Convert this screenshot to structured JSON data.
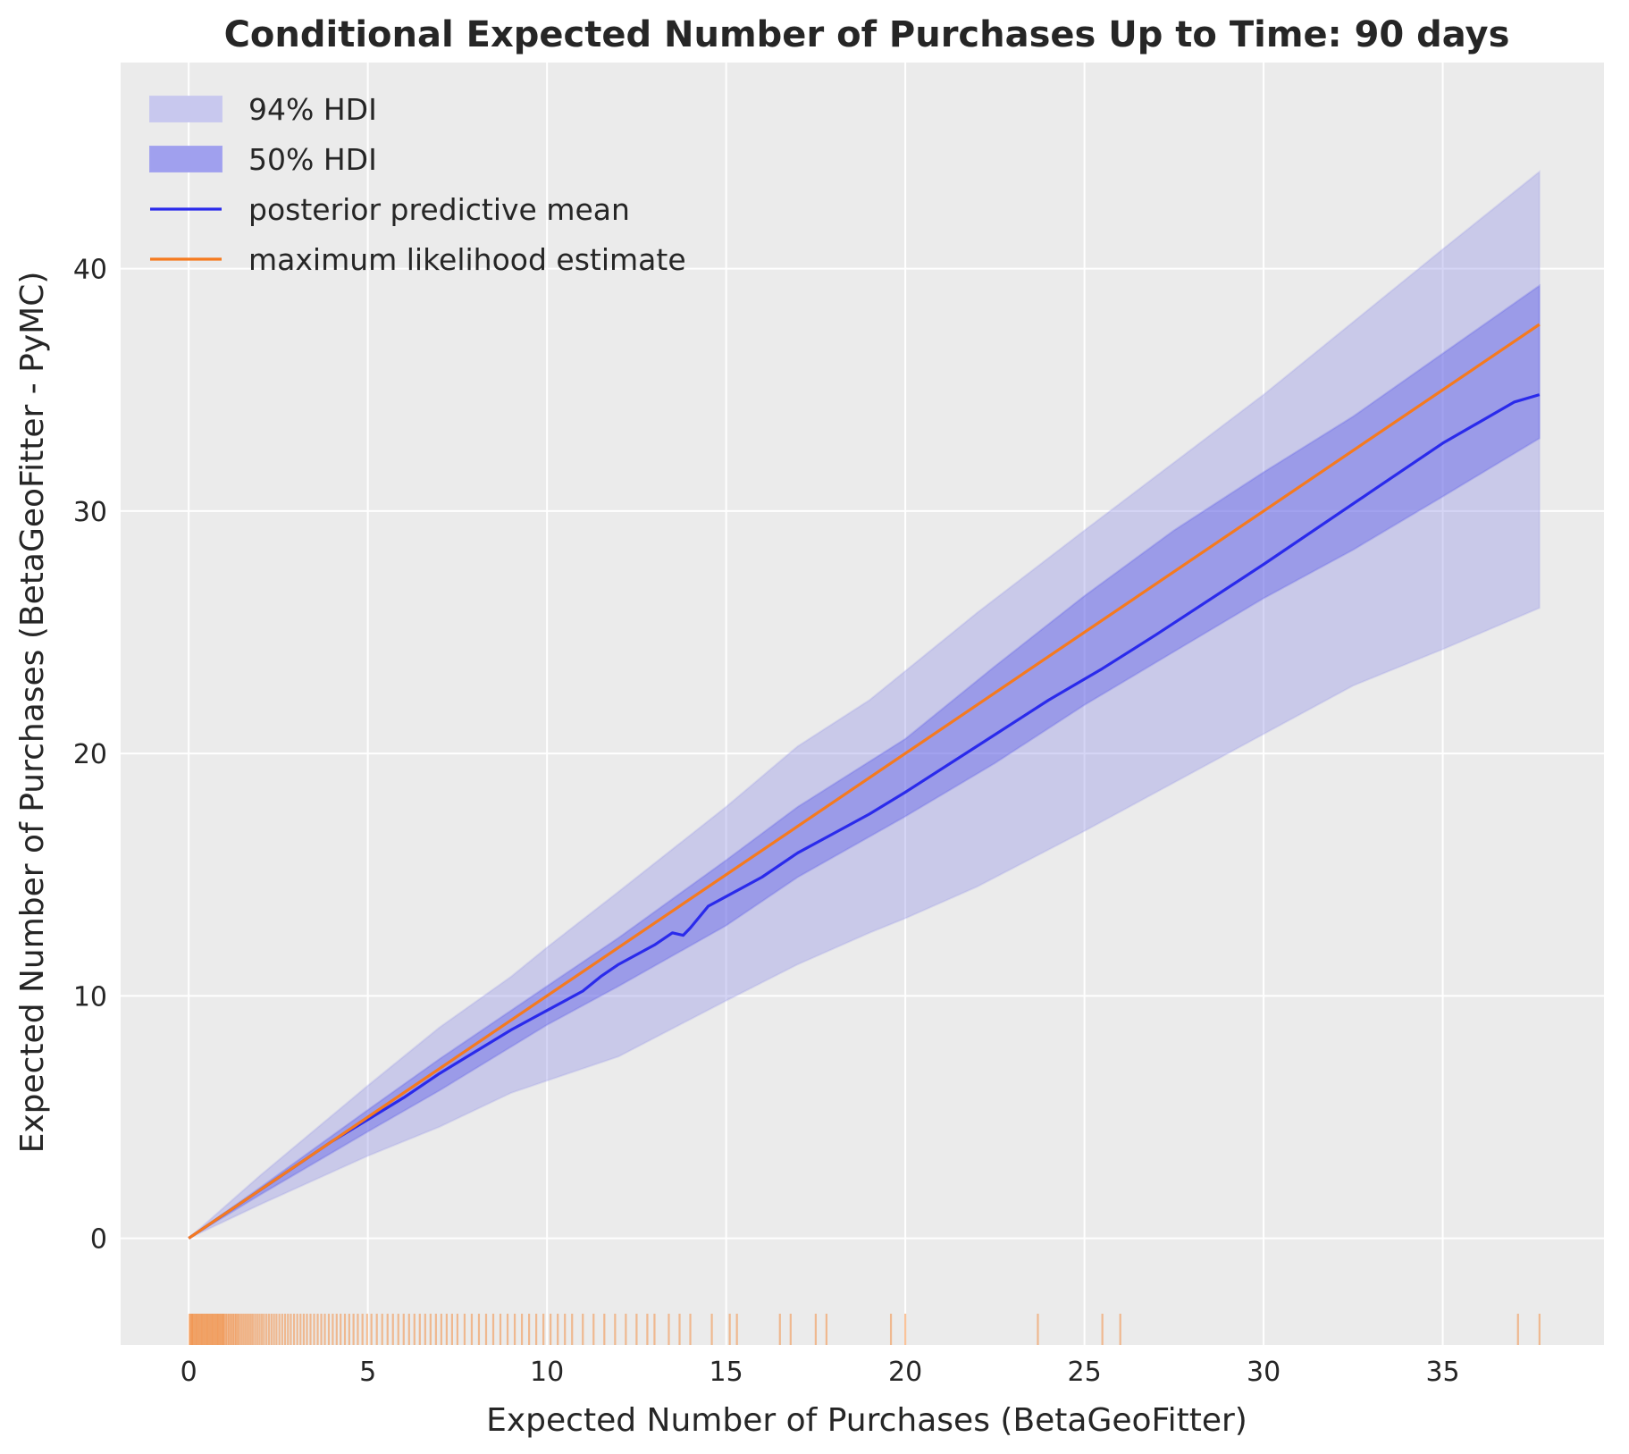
{
  "chart_data": {
    "type": "line",
    "title": "Conditional Expected Number of Purchases Up to Time: 90 days",
    "xlabel": "Expected Number of Purchases (BetaGeoFitter)",
    "ylabel": "Expected Number of Purchases (BetaGeoFitter - PyMC)",
    "xlim": [
      -1.9,
      39.5
    ],
    "ylim": [
      -4.4,
      48.5
    ],
    "x_ticks": [
      0,
      5,
      10,
      15,
      20,
      25,
      30,
      35
    ],
    "y_ticks": [
      0,
      10,
      20,
      30,
      40
    ],
    "grid": true,
    "legend_position": "top-left",
    "colors": {
      "background": "#ebebeb",
      "grid": "#ffffff",
      "hdi_94": "#9c9ce6",
      "hdi_50": "#5c5ce6",
      "posterior_mean": "#2a2aeb",
      "mle": "#f57a1f",
      "rug": "#f57a1f"
    },
    "legend": [
      {
        "label": "94% HDI",
        "kind": "band",
        "color": "#c8c8ee"
      },
      {
        "label": "50% HDI",
        "kind": "band",
        "color": "#a0a0ee"
      },
      {
        "label": "posterior predictive mean",
        "kind": "line",
        "color": "#2a2aeb"
      },
      {
        "label": "maximum likelihood estimate",
        "kind": "line",
        "color": "#f57a1f"
      }
    ],
    "series": [
      {
        "name": "posterior predictive mean",
        "x": [
          0,
          1,
          2,
          3,
          4,
          5,
          6,
          7,
          8,
          9,
          9.5,
          10,
          11,
          11.5,
          12,
          13,
          13.5,
          13.8,
          14,
          14.5,
          15,
          16,
          17,
          18,
          19,
          20,
          22,
          24,
          25.5,
          27,
          30,
          33,
          35,
          37,
          37.7
        ],
        "y": [
          0,
          1.0,
          2.0,
          3.0,
          4.0,
          4.9,
          5.8,
          6.8,
          7.7,
          8.6,
          9.0,
          9.4,
          10.2,
          10.8,
          11.3,
          12.1,
          12.6,
          12.5,
          12.8,
          13.7,
          14.1,
          14.9,
          15.9,
          16.7,
          17.5,
          18.4,
          20.3,
          22.2,
          23.5,
          24.9,
          27.8,
          30.8,
          32.8,
          34.5,
          34.8
        ]
      },
      {
        "name": "maximum likelihood estimate",
        "x": [
          0,
          37.7
        ],
        "y": [
          0,
          37.7
        ]
      }
    ],
    "bands": [
      {
        "name": "94% HDI",
        "x": [
          0,
          2,
          5,
          7,
          9,
          10,
          12,
          15,
          17,
          19,
          20,
          22,
          25,
          30,
          32.5,
          35,
          37.7
        ],
        "lower": [
          0,
          1.4,
          3.4,
          4.6,
          6.0,
          6.5,
          7.5,
          9.8,
          11.3,
          12.6,
          13.2,
          14.5,
          16.8,
          20.8,
          22.8,
          24.3,
          26.0
        ],
        "upper": [
          0,
          2.6,
          6.3,
          8.7,
          10.8,
          12.0,
          14.3,
          17.8,
          20.3,
          22.2,
          23.4,
          25.8,
          29.2,
          34.8,
          37.8,
          40.8,
          44.0
        ]
      },
      {
        "name": "50% HDI",
        "x": [
          0,
          2,
          5,
          7,
          10,
          12,
          15,
          17,
          20,
          22.5,
          25,
          27.5,
          30,
          32.5,
          35,
          37.7
        ],
        "lower": [
          0,
          1.8,
          4.4,
          6.1,
          8.8,
          10.4,
          12.9,
          14.9,
          17.4,
          19.6,
          22.0,
          24.2,
          26.4,
          28.4,
          30.6,
          33.0
        ],
        "upper": [
          0,
          2.1,
          5.3,
          7.4,
          10.4,
          12.4,
          15.6,
          17.8,
          20.6,
          23.6,
          26.5,
          29.2,
          31.6,
          33.9,
          36.5,
          39.3
        ]
      }
    ],
    "rug_x": [
      0.02,
      0.05,
      0.08,
      0.1,
      0.13,
      0.16,
      0.19,
      0.22,
      0.25,
      0.28,
      0.31,
      0.34,
      0.37,
      0.4,
      0.43,
      0.46,
      0.49,
      0.52,
      0.55,
      0.58,
      0.61,
      0.64,
      0.67,
      0.7,
      0.73,
      0.76,
      0.79,
      0.82,
      0.85,
      0.88,
      0.91,
      0.94,
      0.97,
      1.0,
      1.04,
      1.08,
      1.12,
      1.16,
      1.2,
      1.24,
      1.28,
      1.32,
      1.36,
      1.4,
      1.45,
      1.5,
      1.55,
      1.6,
      1.65,
      1.7,
      1.75,
      1.8,
      1.86,
      1.92,
      1.98,
      2.04,
      2.1,
      2.17,
      2.24,
      2.31,
      2.38,
      2.45,
      2.53,
      2.61,
      2.69,
      2.77,
      2.85,
      2.94,
      3.03,
      3.12,
      3.21,
      3.3,
      3.4,
      3.5,
      3.6,
      3.7,
      3.8,
      3.91,
      4.02,
      4.13,
      4.24,
      4.36,
      4.48,
      4.6,
      4.72,
      4.85,
      4.98,
      5.1,
      5.25,
      5.4,
      5.55,
      5.7,
      5.85,
      6.0,
      6.15,
      6.3,
      6.45,
      6.6,
      6.75,
      6.9,
      7.05,
      7.2,
      7.35,
      7.5,
      7.7,
      7.9,
      8.1,
      8.3,
      8.5,
      8.7,
      8.9,
      9.1,
      9.3,
      9.5,
      9.7,
      9.9,
      10.1,
      10.3,
      10.5,
      10.7,
      11.0,
      11.3,
      11.6,
      11.9,
      12.2,
      12.5,
      12.8,
      13.0,
      13.4,
      13.7,
      14.0,
      14.6,
      15.1,
      15.3,
      16.5,
      16.8,
      17.5,
      17.8,
      19.6,
      20.0,
      23.7,
      25.5,
      26.0,
      37.1,
      37.7
    ]
  }
}
